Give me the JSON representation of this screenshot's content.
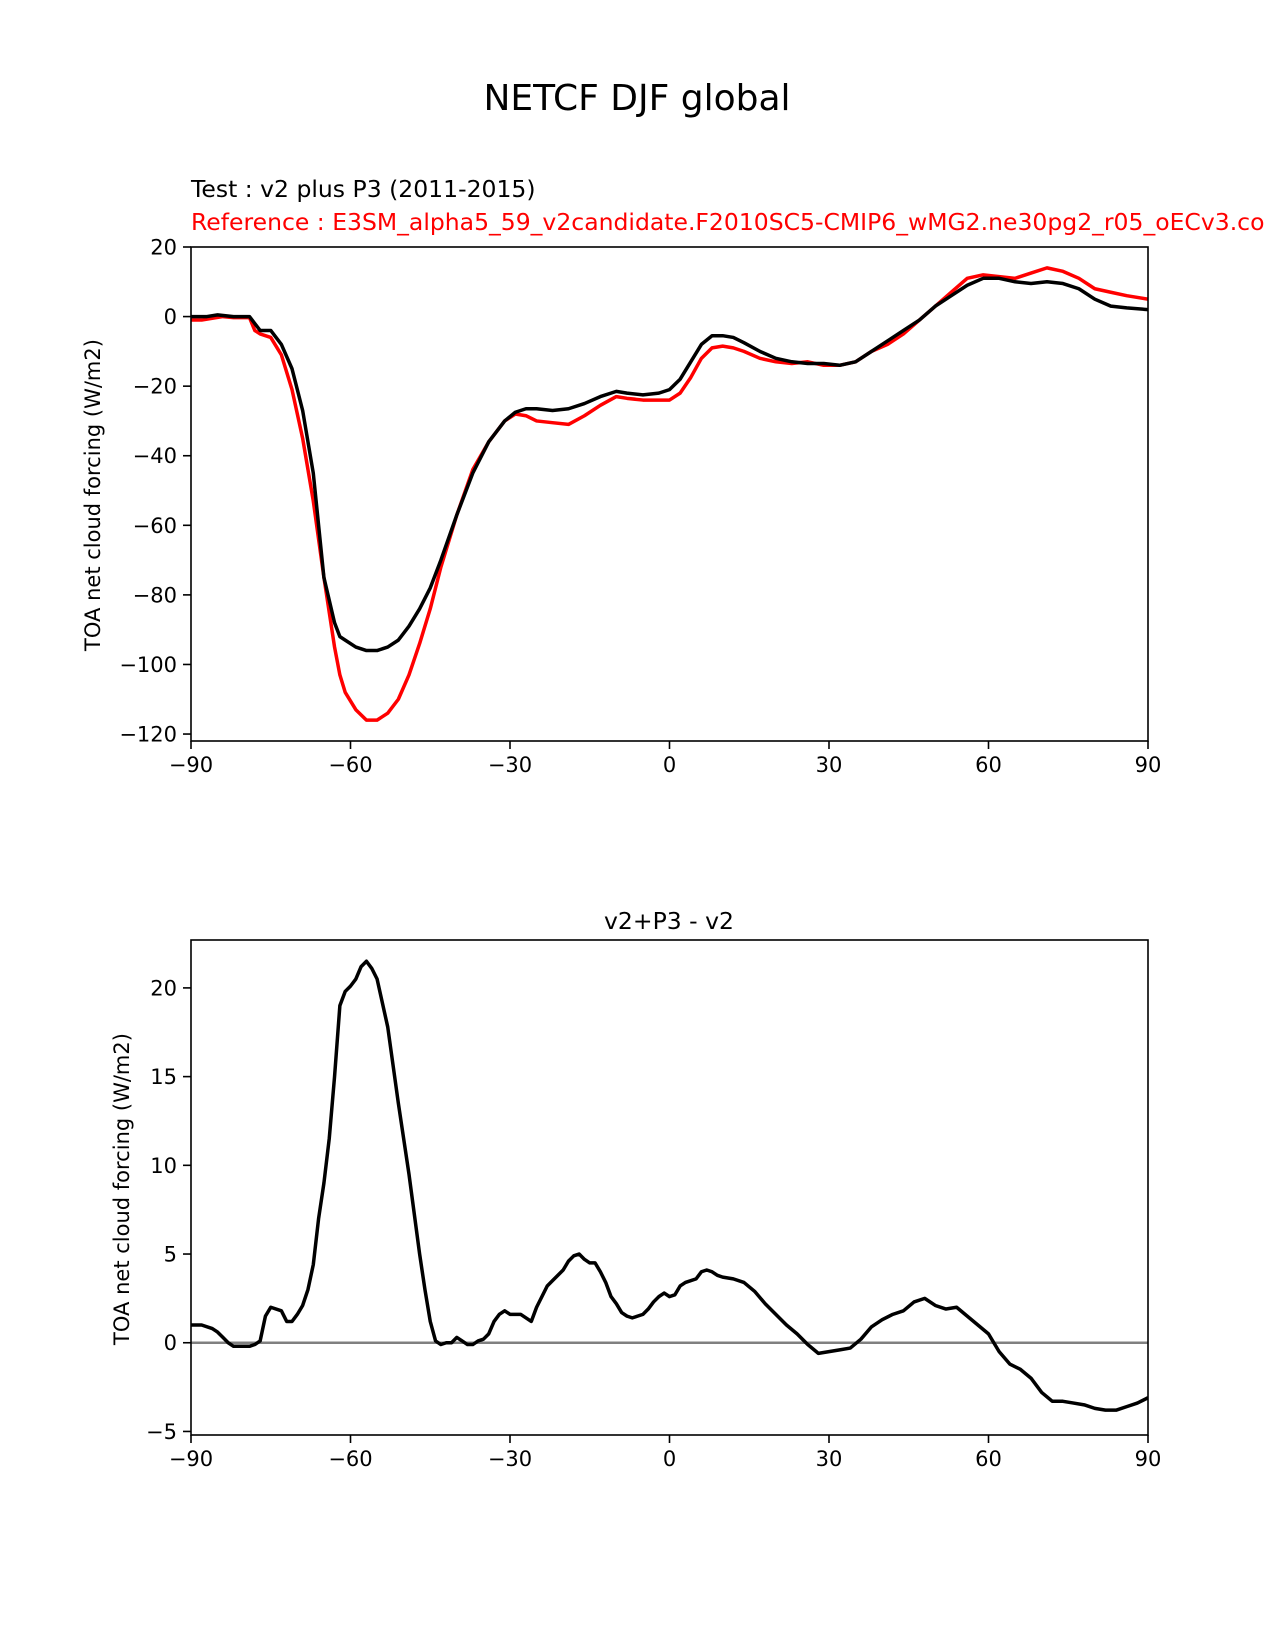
{
  "figure": {
    "title": "NETCF DJF global",
    "colors": {
      "test": "#000000",
      "reference": "#ff0000",
      "zero_line": "#808080"
    }
  },
  "chart_data": [
    {
      "type": "line",
      "test_label": "Test : v2 plus P3 (2011-2015)",
      "reference_label": "Reference : E3SM_alpha5_59_v2candidate.F2010SC5-CMIP6_wMG2.ne30pg2_r05_oECv3.co",
      "xlabel": "",
      "ylabel": "TOA net cloud forcing (W/m2)",
      "xlim": [
        -90,
        90
      ],
      "ylim": [
        -122,
        20
      ],
      "xticks": [
        -90,
        -60,
        -30,
        0,
        30,
        60,
        90
      ],
      "xtick_labels": [
        "−90",
        "−60",
        "−30",
        "0",
        "30",
        "60",
        "90"
      ],
      "yticks": [
        20,
        0,
        -20,
        -40,
        -60,
        -80,
        -100,
        -120
      ],
      "ytick_labels": [
        "20",
        "0",
        "−20",
        "−40",
        "−60",
        "−80",
        "−100",
        "−120"
      ],
      "series": [
        {
          "name": "Test : v2 plus P3 (2011-2015)",
          "color": "#000000",
          "x": [
            -90,
            -87,
            -85,
            -82,
            -79,
            -78,
            -77,
            -75,
            -73,
            -71,
            -69,
            -67,
            -65,
            -63,
            -62,
            -61,
            -59,
            -57,
            -55,
            -53,
            -51,
            -49,
            -47,
            -45,
            -43,
            -40,
            -37,
            -34,
            -31,
            -29,
            -27,
            -25,
            -22,
            -19,
            -16,
            -13,
            -10,
            -8,
            -5,
            -2,
            0,
            2,
            4,
            6,
            8,
            10,
            12,
            14,
            17,
            20,
            23,
            26,
            29,
            32,
            35,
            38,
            41,
            44,
            47,
            50,
            53,
            56,
            59,
            62,
            65,
            68,
            71,
            74,
            77,
            80,
            83,
            86,
            90
          ],
          "values": [
            0,
            0,
            0.5,
            0,
            0,
            -2,
            -4,
            -4,
            -8,
            -15,
            -27,
            -45,
            -75,
            -88,
            -92,
            -93,
            -95,
            -96,
            -96,
            -95,
            -93,
            -89,
            -84,
            -78,
            -70,
            -57,
            -45,
            -36,
            -30,
            -27.5,
            -26.5,
            -26.5,
            -27,
            -26.5,
            -25,
            -23,
            -21.5,
            -22,
            -22.5,
            -22,
            -21,
            -18,
            -13,
            -8,
            -5.5,
            -5.5,
            -6,
            -7.5,
            -10,
            -12,
            -13,
            -13.5,
            -13.5,
            -14,
            -13,
            -10,
            -7,
            -4,
            -1,
            3,
            6,
            9,
            11,
            11,
            10,
            9.5,
            10,
            9.5,
            8,
            5,
            3,
            2.5,
            2
          ]
        },
        {
          "name": "Reference : E3SM_alpha5_59_v2candidate.F2010SC5-CMIP6_wMG2.ne30pg2_r05_oECv3.co",
          "color": "#ff0000",
          "x": [
            -90,
            -88,
            -86,
            -84,
            -82,
            -80,
            -79,
            -78,
            -77,
            -76,
            -75,
            -73,
            -71,
            -69,
            -67,
            -65,
            -63,
            -62,
            -61,
            -59,
            -57,
            -55,
            -53,
            -51,
            -49,
            -47,
            -45,
            -43,
            -40,
            -37,
            -34,
            -31,
            -29,
            -27,
            -25,
            -22,
            -19,
            -16,
            -13,
            -10,
            -8,
            -5,
            -2,
            0,
            2,
            4,
            6,
            8,
            10,
            12,
            14,
            17,
            20,
            23,
            26,
            29,
            32,
            35,
            38,
            41,
            44,
            47,
            50,
            53,
            56,
            59,
            62,
            65,
            68,
            71,
            74,
            77,
            80,
            83,
            86,
            90
          ],
          "values": [
            -1,
            -1,
            -0.5,
            0,
            -0.3,
            -0.3,
            -0.3,
            -4,
            -5,
            -5.5,
            -6,
            -11,
            -21,
            -35,
            -53,
            -75,
            -95,
            -103,
            -108,
            -113,
            -116,
            -116,
            -114,
            -110,
            -103,
            -94,
            -84,
            -72,
            -57,
            -44,
            -36,
            -30,
            -28,
            -28.5,
            -30,
            -30.5,
            -31,
            -28.5,
            -25.5,
            -23,
            -23.5,
            -24,
            -24,
            -24,
            -22,
            -17.5,
            -12,
            -9,
            -8.5,
            -9,
            -10,
            -12,
            -13,
            -13.5,
            -13,
            -14,
            -14,
            -13,
            -10,
            -8,
            -5,
            -1,
            3,
            7,
            11,
            12,
            11.5,
            11,
            12.5,
            14,
            13,
            11,
            8,
            7,
            6,
            5
          ]
        }
      ]
    },
    {
      "type": "line",
      "title": "v2+P3 - v2",
      "xlabel": "",
      "ylabel": "TOA net cloud forcing (W/m2)",
      "xlim": [
        -90,
        90
      ],
      "ylim": [
        -5.2,
        22.7
      ],
      "xticks": [
        -90,
        -60,
        -30,
        0,
        30,
        60,
        90
      ],
      "xtick_labels": [
        "−90",
        "−60",
        "−30",
        "0",
        "30",
        "60",
        "90"
      ],
      "yticks": [
        20,
        15,
        10,
        5,
        0,
        -5
      ],
      "ytick_labels": [
        "20",
        "15",
        "10",
        "5",
        "0",
        "−5"
      ],
      "reference_line": 0,
      "series": [
        {
          "name": "v2+P3 - v2",
          "color": "#000000",
          "x": [
            -90,
            -88,
            -86,
            -85,
            -84,
            -83,
            -82,
            -81,
            -80,
            -79,
            -78,
            -77,
            -76,
            -75,
            -73,
            -72,
            -71,
            -70,
            -69,
            -68,
            -67,
            -66,
            -65,
            -64,
            -63,
            -62,
            -61,
            -60,
            -59,
            -58,
            -57,
            -56,
            -55,
            -53,
            -51,
            -49,
            -47,
            -46,
            -45,
            -44,
            -43,
            -42,
            -41,
            -40,
            -39,
            -38,
            -37,
            -36,
            -35,
            -34,
            -33,
            -32,
            -31,
            -30,
            -28,
            -26,
            -25,
            -23,
            -22,
            -20,
            -19,
            -18,
            -17,
            -16,
            -15,
            -14,
            -13,
            -12,
            -11,
            -10,
            -9,
            -8,
            -7,
            -6,
            -5,
            -4,
            -3,
            -2,
            -1,
            0,
            1,
            2,
            3,
            5,
            6,
            7,
            8,
            9,
            10,
            12,
            14,
            16,
            18,
            20,
            22,
            24,
            26,
            28,
            30,
            32,
            34,
            36,
            38,
            40,
            42,
            44,
            46,
            48,
            50,
            52,
            54,
            56,
            58,
            60,
            62,
            64,
            66,
            68,
            70,
            72,
            74,
            76,
            78,
            80,
            82,
            84,
            86,
            88,
            90
          ],
          "values": [
            1,
            1,
            0.8,
            0.6,
            0.3,
            0,
            -0.2,
            -0.2,
            -0.2,
            -0.2,
            -0.1,
            0.1,
            1.5,
            2,
            1.8,
            1.2,
            1.2,
            1.6,
            2.1,
            3,
            4.4,
            7,
            9,
            11.5,
            15,
            19,
            19.8,
            20.1,
            20.5,
            21.2,
            21.5,
            21.1,
            20.5,
            17.8,
            13.5,
            9.5,
            5,
            3,
            1.2,
            0.1,
            -0.1,
            0,
            0,
            0.3,
            0.1,
            -0.1,
            -0.1,
            0.1,
            0.2,
            0.5,
            1.2,
            1.6,
            1.8,
            1.6,
            1.6,
            1.2,
            2,
            3.2,
            3.5,
            4.1,
            4.6,
            4.9,
            5,
            4.7,
            4.5,
            4.5,
            4,
            3.4,
            2.6,
            2.2,
            1.7,
            1.5,
            1.4,
            1.5,
            1.6,
            1.9,
            2.3,
            2.6,
            2.8,
            2.6,
            2.7,
            3.2,
            3.4,
            3.6,
            4,
            4.1,
            4,
            3.8,
            3.7,
            3.6,
            3.4,
            2.9,
            2.2,
            1.6,
            1,
            0.5,
            -0.1,
            -0.6,
            -0.5,
            -0.4,
            -0.3,
            0.2,
            0.9,
            1.3,
            1.6,
            1.8,
            2.3,
            2.5,
            2.1,
            1.9,
            2,
            1.5,
            1,
            0.5,
            -0.5,
            -1.2,
            -1.5,
            -2,
            -2.8,
            -3.3,
            -3.3,
            -3.4,
            -3.5,
            -3.7,
            -3.8,
            -3.8,
            -3.6,
            -3.4,
            -3.1
          ]
        }
      ]
    }
  ]
}
